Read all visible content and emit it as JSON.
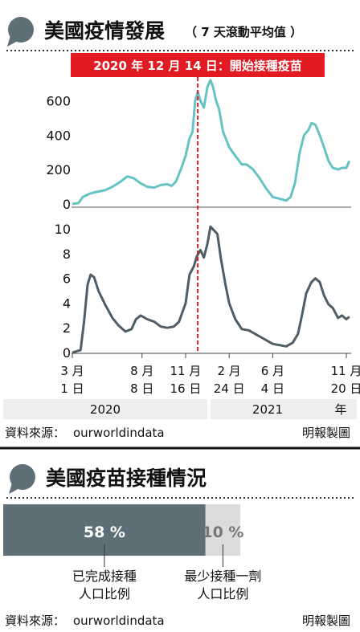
{
  "colors": {
    "accent": "#5e6f78",
    "teal": "#66c3c3",
    "dark_line": "#4f5d66",
    "red": "#e21b23",
    "band": "#eeeeee",
    "bar_dark": "#5e6f78",
    "bar_light": "#dadcdd"
  },
  "section1": {
    "title": "美國疫情發展",
    "subtitle": "（ 7 天滾動平均值 ）"
  },
  "annotation": "2020 年 12 月 14 日：開始接種疫苗",
  "x_ticks": [
    {
      "line1": "3 月",
      "line2": "1 日"
    },
    {
      "line1": "8 月",
      "line2": "8 日"
    },
    {
      "line1": "11 月",
      "line2": "16 日"
    },
    {
      "line1": "2 月",
      "line2": "24 日"
    },
    {
      "line1": "6 月",
      "line2": "4 日"
    },
    {
      "line1": "11 月",
      "line2": "20 日"
    }
  ],
  "years": {
    "y2020": "2020",
    "y2021": "2021",
    "suffix": "年"
  },
  "source": {
    "label": "資料來源：",
    "value": "ourworldindata",
    "credit": "明報製圖"
  },
  "section2": {
    "title": "美國疫苗接種情況",
    "full_pct": "58 %",
    "partial_pct": "10 %",
    "full_label_1": "已完成接種",
    "full_label_2": "人口比例",
    "partial_label_1": "最少接種一劑",
    "partial_label_2": "人口比例"
  },
  "chart_data": [
    {
      "type": "line",
      "title": "",
      "ylabel": "",
      "ylim": [
        0,
        700
      ],
      "yticks": [
        0,
        200,
        400,
        600
      ],
      "grid": false,
      "series": [
        {
          "name": "",
          "points": [
            [
              "2020-03-01",
              0
            ],
            [
              "2020-03-15",
              5
            ],
            [
              "2020-03-25",
              40
            ],
            [
              "2020-04-10",
              60
            ],
            [
              "2020-04-25",
              70
            ],
            [
              "2020-05-15",
              80
            ],
            [
              "2020-06-01",
              100
            ],
            [
              "2020-06-20",
              130
            ],
            [
              "2020-07-05",
              160
            ],
            [
              "2020-07-20",
              150
            ],
            [
              "2020-08-05",
              120
            ],
            [
              "2020-08-20",
              100
            ],
            [
              "2020-09-05",
              95
            ],
            [
              "2020-09-20",
              110
            ],
            [
              "2020-10-05",
              115
            ],
            [
              "2020-10-15",
              105
            ],
            [
              "2020-10-25",
              130
            ],
            [
              "2020-11-05",
              200
            ],
            [
              "2020-11-16",
              280
            ],
            [
              "2020-11-25",
              380
            ],
            [
              "2020-12-02",
              420
            ],
            [
              "2020-12-08",
              600
            ],
            [
              "2020-12-14",
              650
            ],
            [
              "2020-12-20",
              600
            ],
            [
              "2020-12-28",
              560
            ],
            [
              "2021-01-05",
              680
            ],
            [
              "2021-01-12",
              720
            ],
            [
              "2021-01-18",
              680
            ],
            [
              "2021-01-25",
              600
            ],
            [
              "2021-02-01",
              550
            ],
            [
              "2021-02-10",
              420
            ],
            [
              "2021-02-24",
              330
            ],
            [
              "2021-03-10",
              280
            ],
            [
              "2021-03-25",
              230
            ],
            [
              "2021-04-05",
              230
            ],
            [
              "2021-04-20",
              200
            ],
            [
              "2021-05-05",
              150
            ],
            [
              "2021-05-20",
              90
            ],
            [
              "2021-06-04",
              40
            ],
            [
              "2021-06-20",
              30
            ],
            [
              "2021-07-05",
              20
            ],
            [
              "2021-07-15",
              40
            ],
            [
              "2021-07-25",
              120
            ],
            [
              "2021-08-05",
              300
            ],
            [
              "2021-08-15",
              400
            ],
            [
              "2021-08-25",
              430
            ],
            [
              "2021-09-01",
              470
            ],
            [
              "2021-09-10",
              460
            ],
            [
              "2021-09-20",
              400
            ],
            [
              "2021-10-01",
              320
            ],
            [
              "2021-10-10",
              250
            ],
            [
              "2021-10-20",
              210
            ],
            [
              "2021-11-01",
              200
            ],
            [
              "2021-11-10",
              210
            ],
            [
              "2021-11-20",
              210
            ],
            [
              "2021-11-27",
              250
            ]
          ]
        }
      ]
    },
    {
      "type": "line",
      "title": "",
      "ylabel": "",
      "ylim": [
        0,
        10.6
      ],
      "yticks": [
        0,
        2,
        4,
        6,
        8,
        10
      ],
      "grid": false,
      "series": [
        {
          "name": "",
          "points": [
            [
              "2020-03-01",
              0
            ],
            [
              "2020-03-20",
              0.2
            ],
            [
              "2020-03-28",
              2.5
            ],
            [
              "2020-04-05",
              5.5
            ],
            [
              "2020-04-12",
              6.3
            ],
            [
              "2020-04-20",
              6.1
            ],
            [
              "2020-04-30",
              5.0
            ],
            [
              "2020-05-15",
              3.9
            ],
            [
              "2020-06-01",
              2.8
            ],
            [
              "2020-06-15",
              2.2
            ],
            [
              "2020-07-01",
              1.7
            ],
            [
              "2020-07-15",
              1.9
            ],
            [
              "2020-07-25",
              2.7
            ],
            [
              "2020-08-05",
              3.0
            ],
            [
              "2020-08-20",
              2.7
            ],
            [
              "2020-09-05",
              2.5
            ],
            [
              "2020-09-20",
              2.1
            ],
            [
              "2020-10-05",
              2.0
            ],
            [
              "2020-10-20",
              2.1
            ],
            [
              "2020-11-01",
              2.5
            ],
            [
              "2020-11-16",
              4.0
            ],
            [
              "2020-11-25",
              6.3
            ],
            [
              "2020-12-05",
              7.0
            ],
            [
              "2020-12-12",
              7.8
            ],
            [
              "2020-12-20",
              8.3
            ],
            [
              "2020-12-28",
              7.7
            ],
            [
              "2021-01-05",
              8.8
            ],
            [
              "2021-01-12",
              10.2
            ],
            [
              "2021-01-20",
              9.9
            ],
            [
              "2021-01-28",
              9.6
            ],
            [
              "2021-02-05",
              7.6
            ],
            [
              "2021-02-15",
              5.6
            ],
            [
              "2021-02-24",
              4.0
            ],
            [
              "2021-03-10",
              2.7
            ],
            [
              "2021-03-25",
              1.9
            ],
            [
              "2021-04-10",
              1.8
            ],
            [
              "2021-04-25",
              1.5
            ],
            [
              "2021-05-10",
              1.2
            ],
            [
              "2021-05-25",
              0.9
            ],
            [
              "2021-06-04",
              0.7
            ],
            [
              "2021-06-20",
              0.6
            ],
            [
              "2021-07-05",
              0.5
            ],
            [
              "2021-07-20",
              0.8
            ],
            [
              "2021-08-01",
              1.5
            ],
            [
              "2021-08-10",
              3.0
            ],
            [
              "2021-08-20",
              4.8
            ],
            [
              "2021-09-01",
              5.7
            ],
            [
              "2021-09-10",
              6.0
            ],
            [
              "2021-09-20",
              5.7
            ],
            [
              "2021-09-30",
              4.6
            ],
            [
              "2021-10-10",
              3.9
            ],
            [
              "2021-10-20",
              3.6
            ],
            [
              "2021-11-01",
              2.8
            ],
            [
              "2021-11-10",
              3.0
            ],
            [
              "2021-11-20",
              2.7
            ],
            [
              "2021-11-27",
              2.9
            ]
          ]
        }
      ]
    },
    {
      "type": "bar",
      "title": "",
      "orientation": "horizontal-stacked",
      "categories": [
        "已完成接種人口比例",
        "最少接種一劑人口比例"
      ],
      "values": [
        58,
        10
      ],
      "xlim": [
        0,
        100
      ]
    }
  ]
}
